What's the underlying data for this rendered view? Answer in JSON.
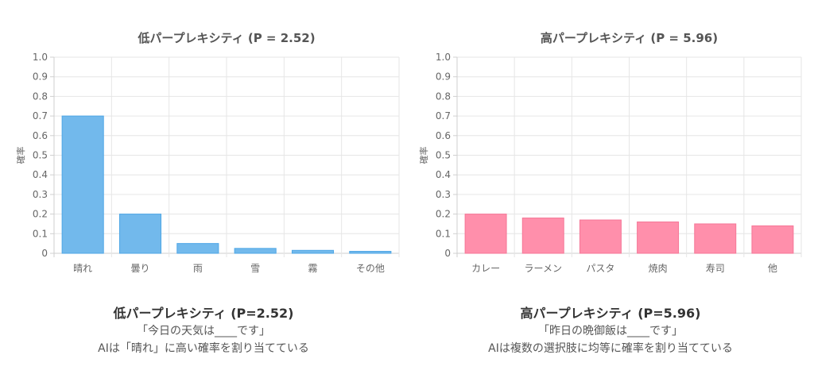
{
  "chart_data": [
    {
      "type": "bar",
      "title": "低パープレキシティ (P = 2.52)",
      "ylabel": "確率",
      "categories": [
        "晴れ",
        "曇り",
        "雨",
        "雪",
        "霧",
        "その他"
      ],
      "values": [
        0.7,
        0.2,
        0.05,
        0.025,
        0.015,
        0.01
      ],
      "ylim": [
        0,
        1.0
      ],
      "yticks": [
        "0",
        "0.1",
        "0.2",
        "0.3",
        "0.4",
        "0.5",
        "0.6",
        "0.7",
        "0.8",
        "0.9",
        "1.0"
      ],
      "grid": true,
      "color": "#72b9ec",
      "border_color": "#4ea6e6"
    },
    {
      "type": "bar",
      "title": "高パープレキシティ (P = 5.96)",
      "ylabel": "確率",
      "categories": [
        "カレー",
        "ラーメン",
        "パスタ",
        "焼肉",
        "寿司",
        "他"
      ],
      "values": [
        0.2,
        0.18,
        0.17,
        0.16,
        0.15,
        0.14
      ],
      "ylim": [
        0,
        1.0
      ],
      "yticks": [
        "0",
        "0.1",
        "0.2",
        "0.3",
        "0.4",
        "0.5",
        "0.6",
        "0.7",
        "0.8",
        "0.9",
        "1.0"
      ],
      "grid": true,
      "color": "#ff8fab",
      "border_color": "#f57797"
    }
  ],
  "captions": [
    {
      "title": "低パープレキシティ (P=2.52)",
      "line1": "「今日の天気は____です」",
      "line2": "AIは「晴れ」に高い確率を割り当てている"
    },
    {
      "title": "高パープレキシティ (P=5.96)",
      "line1": "「昨日の晩御飯は____です」",
      "line2": "AIは複数の選択肢に均等に確率を割り当てている"
    }
  ]
}
